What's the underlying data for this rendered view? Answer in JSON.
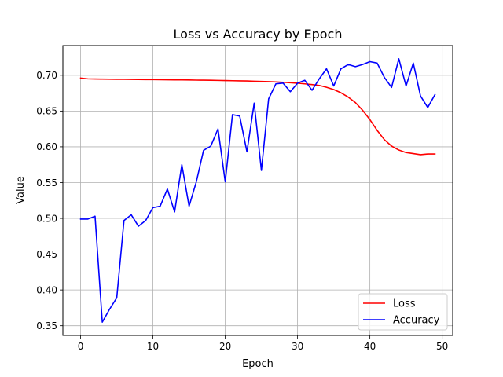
{
  "chart_data": {
    "type": "line",
    "title": "Loss vs Accuracy by Epoch",
    "xlabel": "Epoch",
    "ylabel": "Value",
    "xlim": [
      -2.45,
      51.45
    ],
    "ylim": [
      0.3365,
      0.7415
    ],
    "xticks": [
      0,
      10,
      20,
      30,
      40,
      50
    ],
    "xtick_labels": [
      "0",
      "10",
      "20",
      "30",
      "40",
      "50"
    ],
    "yticks": [
      0.35,
      0.4,
      0.45,
      0.5,
      0.55,
      0.6,
      0.65,
      0.7
    ],
    "ytick_labels": [
      "0.35",
      "0.40",
      "0.45",
      "0.50",
      "0.55",
      "0.60",
      "0.65",
      "0.70"
    ],
    "grid": true,
    "legend_position": "lower right",
    "x": [
      0,
      1,
      2,
      3,
      4,
      5,
      6,
      7,
      8,
      9,
      10,
      11,
      12,
      13,
      14,
      15,
      16,
      17,
      18,
      19,
      20,
      21,
      22,
      23,
      24,
      25,
      26,
      27,
      28,
      29,
      30,
      31,
      32,
      33,
      34,
      35,
      36,
      37,
      38,
      39,
      40,
      41,
      42,
      43,
      44,
      45,
      46,
      47,
      48,
      49
    ],
    "series": [
      {
        "name": "Loss",
        "color": "#ff0000",
        "values": [
          0.696,
          0.695,
          0.6948,
          0.6946,
          0.6945,
          0.6944,
          0.6943,
          0.6942,
          0.6941,
          0.694,
          0.6939,
          0.6938,
          0.6937,
          0.6936,
          0.6935,
          0.6934,
          0.6932,
          0.6931,
          0.693,
          0.6928,
          0.6926,
          0.6924,
          0.6922,
          0.692,
          0.6917,
          0.6914,
          0.6911,
          0.6907,
          0.6902,
          0.6896,
          0.6889,
          0.688,
          0.687,
          0.6858,
          0.6832,
          0.68,
          0.6755,
          0.6695,
          0.6618,
          0.651,
          0.638,
          0.623,
          0.61,
          0.601,
          0.5955,
          0.592,
          0.5905,
          0.589,
          0.59,
          0.59
        ]
      },
      {
        "name": "Accuracy",
        "color": "#0000ff",
        "values": [
          0.499,
          0.499,
          0.503,
          0.355,
          0.373,
          0.389,
          0.497,
          0.505,
          0.489,
          0.497,
          0.515,
          0.517,
          0.541,
          0.509,
          0.575,
          0.517,
          0.551,
          0.595,
          0.601,
          0.625,
          0.551,
          0.645,
          0.643,
          0.593,
          0.661,
          0.567,
          0.667,
          0.688,
          0.689,
          0.677,
          0.689,
          0.693,
          0.679,
          0.695,
          0.709,
          0.685,
          0.709,
          0.715,
          0.712,
          0.715,
          0.719,
          0.717,
          0.697,
          0.683,
          0.723,
          0.685,
          0.717,
          0.671,
          0.655,
          0.673
        ]
      }
    ]
  }
}
